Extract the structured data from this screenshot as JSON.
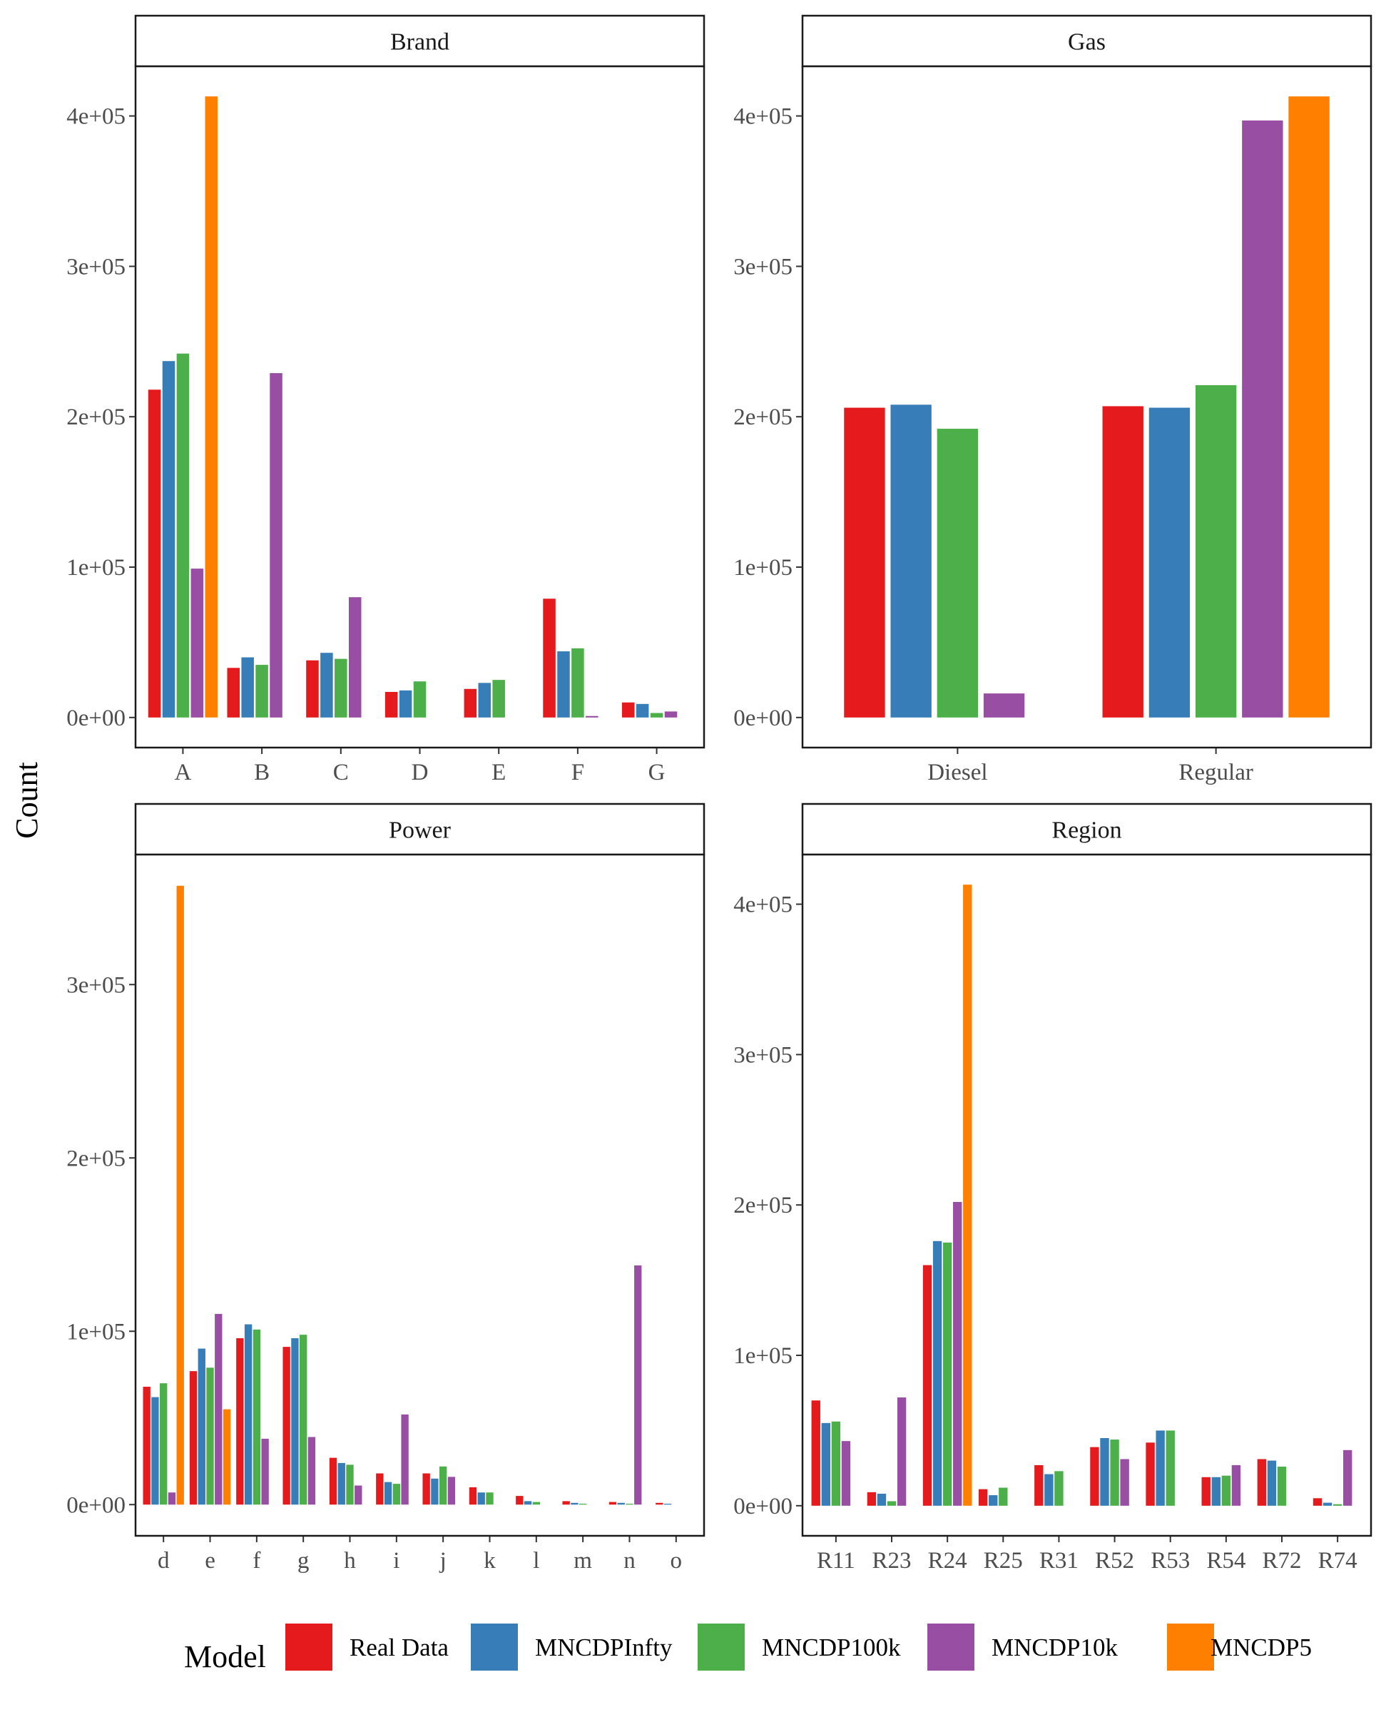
{
  "chart_data": {
    "type": "bar",
    "ylabel": "Count",
    "legend": {
      "title": "Model",
      "placement": "bottom",
      "entries": [
        "Real Data",
        "MNCDPInfty",
        "MNCDP100k",
        "MNCDP10k",
        "MNCDP5"
      ]
    },
    "colors": [
      "#e41a1c",
      "#377eb8",
      "#4daf4a",
      "#984ea3",
      "#ff7f00"
    ],
    "grid": false,
    "panels": [
      {
        "title": "Brand",
        "categories": [
          "A",
          "B",
          "C",
          "D",
          "E",
          "F",
          "G"
        ],
        "ylim": [
          -20000,
          433000
        ],
        "yticks": [
          0,
          100000,
          200000,
          300000,
          400000
        ],
        "ytick_labels": [
          "0e+00",
          "1e+05",
          "2e+05",
          "3e+05",
          "4e+05"
        ],
        "series": [
          {
            "name": "Real Data",
            "values": [
              218000,
              33000,
              38000,
              17000,
              19000,
              79000,
              10000
            ]
          },
          {
            "name": "MNCDPInfty",
            "values": [
              237000,
              40000,
              43000,
              18000,
              23000,
              44000,
              9000
            ]
          },
          {
            "name": "MNCDP100k",
            "values": [
              242000,
              35000,
              39000,
              24000,
              25000,
              46000,
              3000
            ]
          },
          {
            "name": "MNCDP10k",
            "values": [
              99000,
              229000,
              80000,
              0,
              0,
              1000,
              4000
            ]
          },
          {
            "name": "MNCDP5",
            "values": [
              413000,
              0,
              0,
              0,
              0,
              0,
              0
            ]
          }
        ]
      },
      {
        "title": "Gas",
        "categories": [
          "Diesel",
          "Regular"
        ],
        "ylim": [
          -20000,
          433000
        ],
        "yticks": [
          0,
          100000,
          200000,
          300000,
          400000
        ],
        "ytick_labels": [
          "0e+00",
          "1e+05",
          "2e+05",
          "3e+05",
          "4e+05"
        ],
        "series": [
          {
            "name": "Real Data",
            "values": [
              206000,
              207000
            ]
          },
          {
            "name": "MNCDPInfty",
            "values": [
              208000,
              206000
            ]
          },
          {
            "name": "MNCDP100k",
            "values": [
              192000,
              221000
            ]
          },
          {
            "name": "MNCDP10k",
            "values": [
              16000,
              397000
            ]
          },
          {
            "name": "MNCDP5",
            "values": [
              0,
              413000
            ]
          }
        ]
      },
      {
        "title": "Power",
        "categories": [
          "d",
          "e",
          "f",
          "g",
          "h",
          "i",
          "j",
          "k",
          "l",
          "m",
          "n",
          "o"
        ],
        "ylim": [
          -18000,
          375000
        ],
        "yticks": [
          0,
          100000,
          200000,
          300000
        ],
        "ytick_labels": [
          "0e+00",
          "1e+05",
          "2e+05",
          "3e+05"
        ],
        "series": [
          {
            "name": "Real Data",
            "values": [
              68000,
              77000,
              96000,
              91000,
              27000,
              18000,
              18000,
              10000,
              5000,
              2000,
              1500,
              1000
            ]
          },
          {
            "name": "MNCDPInfty",
            "values": [
              62000,
              90000,
              104000,
              96000,
              24000,
              13000,
              15000,
              7000,
              2000,
              1000,
              1000,
              500
            ]
          },
          {
            "name": "MNCDP100k",
            "values": [
              70000,
              79000,
              101000,
              98000,
              23000,
              12000,
              22000,
              7000,
              1500,
              500,
              500,
              0
            ]
          },
          {
            "name": "MNCDP10k",
            "values": [
              7000,
              110000,
              38000,
              39000,
              11000,
              52000,
              16000,
              0,
              0,
              0,
              138000,
              0
            ]
          },
          {
            "name": "MNCDP5",
            "values": [
              357000,
              55000,
              0,
              0,
              0,
              0,
              0,
              0,
              0,
              0,
              0,
              0
            ]
          }
        ]
      },
      {
        "title": "Region",
        "categories": [
          "R11",
          "R23",
          "R24",
          "R25",
          "R31",
          "R52",
          "R53",
          "R54",
          "R72",
          "R74"
        ],
        "ylim": [
          -20000,
          433000
        ],
        "yticks": [
          0,
          100000,
          200000,
          300000,
          400000
        ],
        "ytick_labels": [
          "0e+00",
          "1e+05",
          "2e+05",
          "3e+05",
          "4e+05"
        ],
        "series": [
          {
            "name": "Real Data",
            "values": [
              70000,
              9000,
              160000,
              11000,
              27000,
              39000,
              42000,
              19000,
              31000,
              5000
            ]
          },
          {
            "name": "MNCDPInfty",
            "values": [
              55000,
              8000,
              176000,
              7000,
              21000,
              45000,
              50000,
              19000,
              30000,
              2000
            ]
          },
          {
            "name": "MNCDP100k",
            "values": [
              56000,
              3000,
              175000,
              12000,
              23000,
              44000,
              50000,
              20000,
              26000,
              1000
            ]
          },
          {
            "name": "MNCDP10k",
            "values": [
              43000,
              72000,
              202000,
              0,
              0,
              31000,
              0,
              27000,
              0,
              37000
            ]
          },
          {
            "name": "MNCDP5",
            "values": [
              0,
              0,
              413000,
              0,
              0,
              0,
              0,
              0,
              0,
              0
            ]
          }
        ]
      }
    ]
  }
}
